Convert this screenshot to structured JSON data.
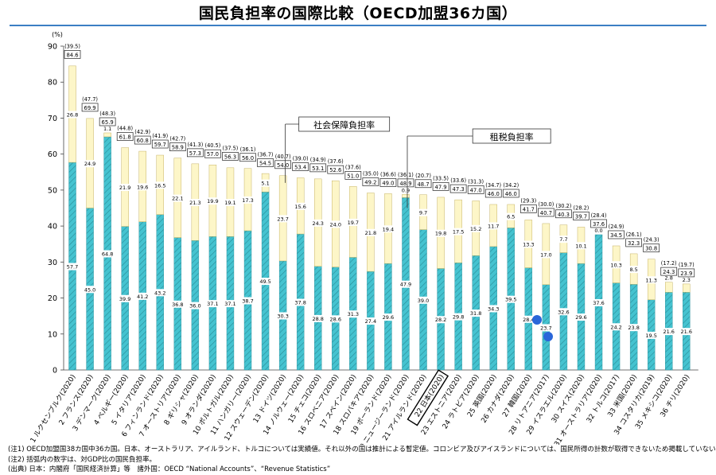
{
  "title": "国民負担率の国際比較（OECD加盟36カ国）",
  "notes": [
    "(注1) OECD加盟国38カ国中36カ国。日本、オーストラリア、アイルランド、トルコについては実績値。それ以外の国は推計による暫定値。コロンビア及びアイスランドについては、国民所得の計数が取得できないため掲載していない。",
    "(注2) 括弧内の数字は、対GDP比の国民負担率。",
    "(出典) 日本：内閣府「国民経済計算」等　諸外国：OECD “National Accounts”、“Revenue Statistics”"
  ],
  "colors": {
    "tax": "#45c3d0",
    "social": "#fdf6c8",
    "accent": "#3b7fc4",
    "dot": "#2a66d9"
  },
  "chart_data": {
    "type": "bar",
    "stacked": true,
    "ylabel": "(%)",
    "ylim": [
      0,
      90
    ],
    "yticks": [
      0,
      10,
      20,
      30,
      40,
      50,
      60,
      70,
      80,
      90
    ],
    "highlight": "22 日本(2020)",
    "categories": [
      "1 ルクセンブルク(2020)",
      "2 フランス(2020)",
      "3 デンマーク(2020)",
      "4 ベルギー(2020)",
      "5 イタリア(2020)",
      "6 フィンランド(2020)",
      "7 オーストリア(2020)",
      "8 ギリシャ(2020)",
      "9 オランダ(2020)",
      "10 ポルトガル(2020)",
      "11 ハンガリー(2020)",
      "12 スウェーデン(2020)",
      "13 ドイツ(2020)",
      "14 ノルウェー(2020)",
      "15 チェコ(2020)",
      "16 スロベニア(2020)",
      "17 スペイン(2020)",
      "18 スロバキア(2020)",
      "19 ポーランド(2020)",
      "20 ニュージーランド(2020)",
      "21 アイルランド(2020)",
      "22 日本(2020)",
      "23 エストニア(2020)",
      "24 ラトビア(2020)",
      "25 英国(2020)",
      "26 カナダ(2020)",
      "27 韓国(2020)",
      "28 リトアニア(2017)",
      "29 イスラエル(2020)",
      "30 スイス(2020)",
      "31 オーストラリア(2020)",
      "32 トルコ(2017)",
      "33 米国(2020)",
      "34 コスタリカ(2019)",
      "35 メキシコ(2020)",
      "36 チリ(2020)"
    ],
    "series": [
      {
        "name": "租税負担率",
        "values": [
          57.7,
          45.0,
          64.8,
          39.9,
          41.2,
          43.2,
          36.8,
          36.0,
          37.1,
          37.1,
          38.7,
          49.5,
          30.3,
          37.8,
          28.8,
          28.6,
          31.3,
          27.4,
          29.6,
          47.9,
          39.0,
          28.2,
          29.8,
          31.8,
          34.3,
          39.5,
          28.4,
          23.7,
          32.6,
          29.6,
          37.6,
          24.2,
          23.8,
          19.5,
          21.6,
          21.6
        ]
      },
      {
        "name": "社会保障負担率",
        "values": [
          26.8,
          24.9,
          1.1,
          21.9,
          19.6,
          16.5,
          22.1,
          21.3,
          19.9,
          19.1,
          17.3,
          5.1,
          23.7,
          15.6,
          24.3,
          24.0,
          19.7,
          21.8,
          19.4,
          0.9,
          9.7,
          19.8,
          17.5,
          15.2,
          11.7,
          6.5,
          13.3,
          17.0,
          7.7,
          10.1,
          0.0,
          10.3,
          8.5,
          11.3,
          2.8,
          2.3
        ]
      }
    ],
    "totals": [
      84.6,
      69.9,
      65.9,
      61.8,
      60.8,
      59.7,
      58.9,
      57.3,
      57.0,
      56.3,
      56.0,
      54.5,
      54.0,
      53.4,
      53.1,
      52.6,
      51.0,
      49.2,
      49.0,
      48.9,
      48.7,
      47.9,
      47.3,
      47.0,
      46.0,
      46.0,
      41.7,
      40.7,
      40.3,
      39.7,
      37.6,
      34.5,
      32.3,
      30.8,
      24.3,
      23.9
    ],
    "gdp_ratios": [
      "(39.5)",
      "(47.7)",
      "(48.3)",
      "(44.8)",
      "(42.9)",
      "(41.9)",
      "(42.7)",
      "(41.3)",
      "(40.5)",
      "(37.5)",
      "(36.1)",
      "(36.7)",
      "(40.7)",
      "(39.0)",
      "(34.9)",
      "(37.6)",
      "(37.6)",
      "(35.0)",
      "(36.6)",
      "(36.1)",
      "(20.7)",
      "(33.5)",
      "(33.6)",
      "(31.3)",
      "(34.7)",
      "(34.2)",
      "(29.3)",
      "(30.0)",
      "(30.2)",
      "(28.2)",
      "(28.4)",
      "(24.9)",
      "(26.1)",
      "(24.3)",
      "(17.2)",
      "(19.7)"
    ],
    "annotations": [
      "社会保障負担率",
      "租税負担率"
    ]
  }
}
